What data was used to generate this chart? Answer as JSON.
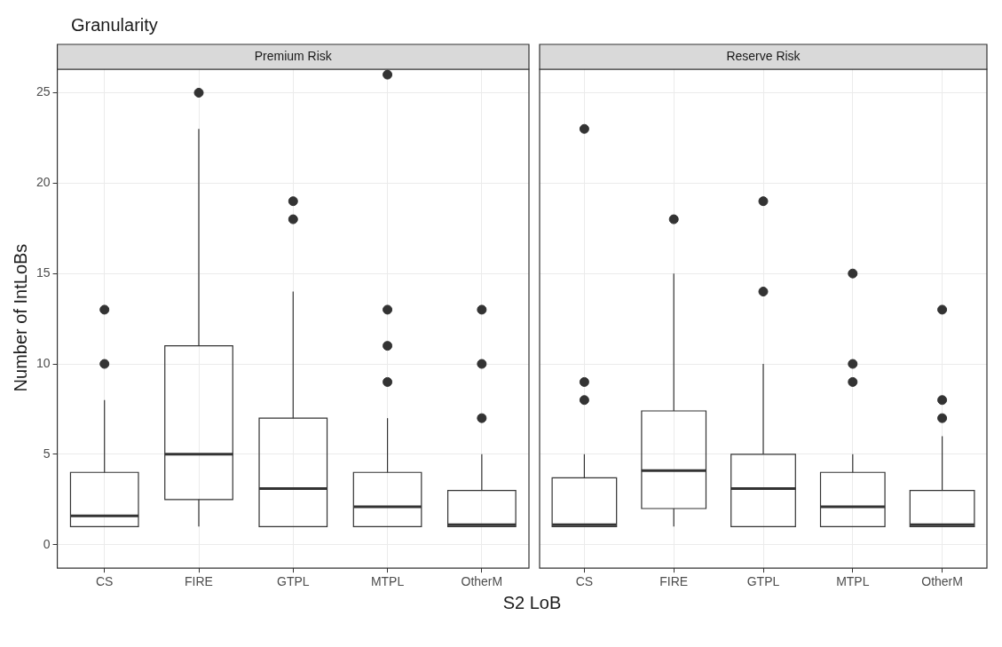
{
  "chart_data": [
    {
      "type": "box",
      "title": "Granularity",
      "subtitle": "Premium Risk",
      "xlabel": "S2 LoB",
      "ylabel": "Number of IntLoBs",
      "categories": [
        "CS",
        "FIRE",
        "GTPL",
        "MTPL",
        "OtherM"
      ],
      "color": "#333333",
      "marker": "circle",
      "grid": true,
      "ylim": [
        -1.3,
        26.3
      ],
      "yticks": [
        0,
        5,
        10,
        15,
        20,
        25
      ],
      "boxes": [
        {
          "low": 1,
          "q1": 1,
          "median": 1.6,
          "q3": 4,
          "high": 8,
          "outliers": [
            10,
            13
          ]
        },
        {
          "low": 1,
          "q1": 2.5,
          "median": 5,
          "q3": 11,
          "high": 23,
          "outliers": [
            25
          ]
        },
        {
          "low": 1,
          "q1": 1,
          "median": 3.1,
          "q3": 7,
          "high": 14,
          "outliers": [
            18,
            19
          ]
        },
        {
          "low": 1,
          "q1": 1,
          "median": 2.1,
          "q3": 4,
          "high": 7,
          "outliers": [
            9,
            11,
            13,
            26
          ]
        },
        {
          "low": 1,
          "q1": 1,
          "median": 1.1,
          "q3": 3,
          "high": 5,
          "outliers": [
            7,
            10,
            13
          ]
        }
      ]
    },
    {
      "type": "box",
      "subtitle": "Reserve Risk",
      "categories": [
        "CS",
        "FIRE",
        "GTPL",
        "MTPL",
        "OtherM"
      ],
      "color": "#333333",
      "marker": "circle",
      "grid": true,
      "ylim": [
        -1.3,
        26.3
      ],
      "yticks": [
        0,
        5,
        10,
        15,
        20,
        25
      ],
      "tick_labels": "x",
      "boxes": [
        {
          "low": 1,
          "q1": 1,
          "median": 1.1,
          "q3": 3.7,
          "high": 5,
          "outliers": [
            8,
            9,
            23
          ]
        },
        {
          "low": 1,
          "q1": 2,
          "median": 4.1,
          "q3": 7.4,
          "high": 15,
          "outliers": [
            18
          ]
        },
        {
          "low": 1,
          "q1": 1,
          "median": 3.1,
          "q3": 5,
          "high": 10,
          "outliers": [
            14,
            19
          ]
        },
        {
          "low": 1,
          "q1": 1,
          "median": 2.1,
          "q3": 4,
          "high": 5,
          "outliers": [
            9,
            10,
            15
          ]
        },
        {
          "low": 1,
          "q1": 1,
          "median": 1.1,
          "q3": 3,
          "high": 6,
          "outliers": [
            7,
            8,
            13
          ]
        }
      ]
    }
  ]
}
